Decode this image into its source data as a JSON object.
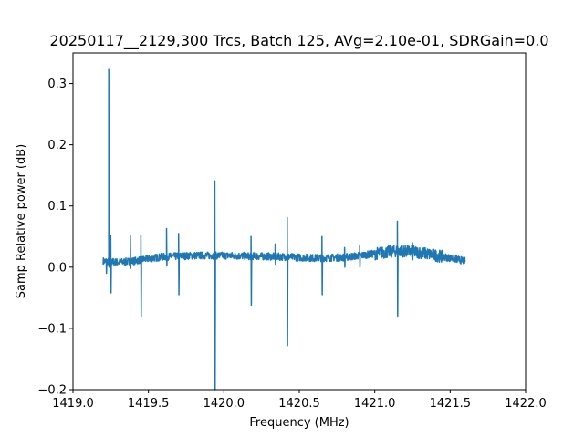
{
  "chart_data": {
    "type": "line",
    "title": "20250117__2129,300 Trcs, Batch 125, AVg=2.10e-01, SDRGain=0.0",
    "xlabel": "Frequency (MHz)",
    "ylabel": "Samp Relative power (dB)",
    "xlim": [
      1419.0,
      1422.0
    ],
    "ylim": [
      -0.2,
      0.35
    ],
    "xticks": [
      1419.0,
      1419.5,
      1420.0,
      1420.5,
      1421.0,
      1421.5,
      1422.0
    ],
    "xtick_labels": [
      "1419.0",
      "1419.5",
      "1420.0",
      "1420.5",
      "1421.0",
      "1421.5",
      "1422.0"
    ],
    "yticks": [
      -0.2,
      -0.1,
      0.0,
      0.1,
      0.2,
      0.3
    ],
    "ytick_labels": [
      "−0.2",
      "−0.1",
      "0.0",
      "0.1",
      "0.2",
      "0.3"
    ],
    "grid": false,
    "series_color": "#1f77b4",
    "series": [
      {
        "x_range": [
          1419.2,
          1421.6
        ],
        "baseline": [
          [
            1419.2,
            0.01
          ],
          [
            1419.3,
            0.008
          ],
          [
            1419.4,
            0.01
          ],
          [
            1419.5,
            0.014
          ],
          [
            1419.6,
            0.017
          ],
          [
            1419.8,
            0.019
          ],
          [
            1420.0,
            0.019
          ],
          [
            1420.2,
            0.018
          ],
          [
            1420.4,
            0.017
          ],
          [
            1420.6,
            0.015
          ],
          [
            1420.8,
            0.016
          ],
          [
            1421.0,
            0.022
          ],
          [
            1421.15,
            0.027
          ],
          [
            1421.3,
            0.024
          ],
          [
            1421.5,
            0.015
          ],
          [
            1421.6,
            0.01
          ]
        ],
        "spikes": [
          {
            "x": 1419.22,
            "high": 0.01,
            "low": -0.01
          },
          {
            "x": 1419.237,
            "high": 0.323,
            "low": 0.0
          },
          {
            "x": 1419.25,
            "high": 0.052,
            "low": -0.042
          },
          {
            "x": 1419.38,
            "high": 0.051,
            "low": -0.002
          },
          {
            "x": 1419.45,
            "high": 0.052,
            "low": -0.08
          },
          {
            "x": 1419.62,
            "high": 0.063,
            "low": 0.002
          },
          {
            "x": 1419.7,
            "high": 0.055,
            "low": -0.045
          },
          {
            "x": 1419.94,
            "high": 0.141,
            "low": -0.2
          },
          {
            "x": 1420.18,
            "high": 0.05,
            "low": -0.062
          },
          {
            "x": 1420.34,
            "high": 0.038,
            "low": 0.005
          },
          {
            "x": 1420.42,
            "high": 0.081,
            "low": -0.128
          },
          {
            "x": 1420.65,
            "high": 0.05,
            "low": -0.045
          },
          {
            "x": 1420.8,
            "high": 0.032,
            "low": 0.0
          },
          {
            "x": 1420.9,
            "high": 0.036,
            "low": 0.0
          },
          {
            "x": 1421.15,
            "high": 0.075,
            "low": -0.08
          },
          {
            "x": 1421.25,
            "high": 0.04,
            "low": 0.012
          }
        ]
      }
    ]
  }
}
